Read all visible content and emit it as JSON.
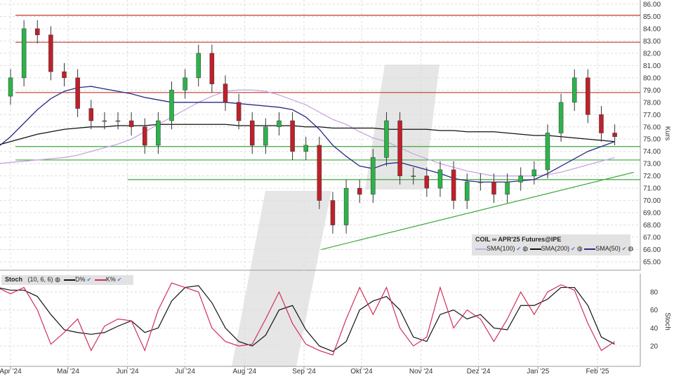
{
  "chart_data": {
    "type": "candlestick",
    "title": "COIL ∞ APR'25 Futures@IPE",
    "ylabel": "Kurs",
    "ylim": [
      64,
      86.5
    ],
    "yticks": [
      "65.00",
      "66.00",
      "67.00",
      "68.00",
      "69.00",
      "70.00",
      "71.00",
      "72.00",
      "73.00",
      "74.00",
      "75.00",
      "76.00",
      "77.00",
      "78.00",
      "79.00",
      "80.00",
      "81.00",
      "82.00",
      "83.00",
      "84.00",
      "85.00",
      "86.00"
    ],
    "xticks": [
      {
        "label": "Apr '24",
        "date": "2024-04-01"
      },
      {
        "label": "Mai '24",
        "date": "2024-05-01"
      },
      {
        "label": "Jun '24",
        "date": "2024-06-01"
      },
      {
        "label": "Jul '24",
        "date": "2024-07-01"
      },
      {
        "label": "Aug '24",
        "date": "2024-08-01"
      },
      {
        "label": "Sep '24",
        "date": "2024-09-01"
      },
      {
        "label": "Okt '24",
        "date": "2024-10-01"
      },
      {
        "label": "Nov '24",
        "date": "2024-11-01"
      },
      {
        "label": "Dez '24",
        "date": "2024-12-01"
      },
      {
        "label": "Jan '25",
        "date": "2025-01-01"
      },
      {
        "label": "Feb '25",
        "date": "2025-02-01"
      }
    ],
    "dates": [
      "2024-03-25",
      "2024-04-01",
      "2024-04-08",
      "2024-04-15",
      "2024-04-22",
      "2024-04-29",
      "2024-05-06",
      "2024-05-13",
      "2024-05-20",
      "2024-05-27",
      "2024-06-03",
      "2024-06-10",
      "2024-06-17",
      "2024-06-24",
      "2024-07-01",
      "2024-07-08",
      "2024-07-15",
      "2024-07-22",
      "2024-07-29",
      "2024-08-05",
      "2024-08-12",
      "2024-08-19",
      "2024-08-26",
      "2024-09-02",
      "2024-09-09",
      "2024-09-16",
      "2024-09-23",
      "2024-09-30",
      "2024-10-07",
      "2024-10-14",
      "2024-10-21",
      "2024-10-28",
      "2024-11-04",
      "2024-11-11",
      "2024-11-18",
      "2024-11-25",
      "2024-12-02",
      "2024-12-09",
      "2024-12-16",
      "2024-12-23",
      "2024-12-30",
      "2025-01-06",
      "2025-01-13",
      "2025-01-20",
      "2025-01-27",
      "2025-02-03",
      "2025-02-10"
    ],
    "close": [
      78.5,
      80,
      84,
      83.5,
      80.5,
      80,
      77.5,
      76.5,
      76.5,
      76.5,
      76,
      74.5,
      76.5,
      79,
      80,
      82,
      79.5,
      78,
      76.5,
      74.5,
      76,
      76.5,
      74,
      74.5,
      70,
      68,
      71,
      70.5,
      73.5,
      76.5,
      72,
      72,
      71,
      72.5,
      70,
      71.5,
      71.5,
      70.5,
      71.5,
      72,
      72.5,
      75.5,
      78,
      80,
      77,
      75.5,
      75.2
    ],
    "series": [
      {
        "name": "SMA(100)",
        "color": "#c9a6e0",
        "values": [
          73,
          73.1,
          73.2,
          73.3,
          73.4,
          73.5,
          73.7,
          74,
          74.3,
          74.6,
          75,
          75.6,
          76.2,
          76.8,
          77.4,
          78,
          78.5,
          78.9,
          79,
          79,
          78.9,
          78.6,
          78.2,
          77.8,
          77.2,
          76.6,
          76.2,
          75.6,
          75.1,
          74.8,
          74.3,
          73.8,
          73.4,
          73,
          72.7,
          72.4,
          72.2,
          72,
          72,
          72,
          72,
          72.1,
          72.3,
          72.6,
          72.9,
          73.2,
          73.5
        ]
      },
      {
        "name": "SMA(200)",
        "color": "#111111",
        "values": [
          74.5,
          74.8,
          75.1,
          75.4,
          75.6,
          75.8,
          75.9,
          76,
          76,
          76.1,
          76.1,
          76.1,
          76.2,
          76.2,
          76.2,
          76.2,
          76.2,
          76.2,
          76.1,
          76.1,
          76.1,
          76.1,
          76.1,
          76,
          76,
          75.9,
          75.9,
          75.9,
          75.9,
          75.8,
          75.8,
          75.8,
          75.8,
          75.7,
          75.7,
          75.6,
          75.6,
          75.6,
          75.5,
          75.4,
          75.3,
          75.3,
          75.2,
          75.1,
          75,
          74.9,
          74.8
        ]
      },
      {
        "name": "SMA(50)",
        "color": "#2a2a8a",
        "values": [
          74.3,
          75.2,
          76.3,
          77.4,
          78.3,
          78.9,
          79.2,
          79.3,
          79.1,
          78.9,
          78.7,
          78.4,
          78.2,
          78,
          78,
          78,
          78,
          78,
          77.9,
          77.8,
          77.7,
          77.6,
          77.4,
          76.8,
          75.8,
          74.5,
          73.6,
          72.8,
          72.6,
          73,
          73.1,
          72.8,
          72.5,
          72.2,
          71.8,
          71.6,
          71.5,
          71.5,
          71.5,
          71.6,
          71.7,
          72.2,
          72.8,
          73.4,
          74,
          74.4,
          74.8
        ]
      }
    ],
    "hlines": [
      {
        "value": 85.1,
        "color": "#c0392b"
      },
      {
        "value": 82.9,
        "color": "#c0392b"
      },
      {
        "value": 78.8,
        "color": "#c0392b"
      },
      {
        "value": 74.4,
        "color": "#3aa63a"
      },
      {
        "value": 73.3,
        "color": "#3aa63a"
      },
      {
        "value": 71.7,
        "color": "#3aa63a",
        "from": "2024-06-01"
      }
    ],
    "trendline": {
      "from": {
        "date": "2024-09-10",
        "value": 66.0
      },
      "to": {
        "date": "2025-02-20",
        "value": 72.3
      },
      "color": "#3aa63a"
    },
    "stoch": {
      "title": "Stoch",
      "params": "(10, 6, 6)",
      "ylabel": "Stoch",
      "yticks": [
        "20",
        "40",
        "60",
        "80"
      ],
      "ylim": [
        0,
        100
      ],
      "D": {
        "name": "D%",
        "color": "#111111",
        "values": [
          85,
          82,
          82,
          75,
          55,
          38,
          35,
          33,
          35,
          42,
          48,
          35,
          40,
          70,
          85,
          87,
          68,
          40,
          25,
          20,
          32,
          60,
          65,
          38,
          20,
          14,
          25,
          60,
          70,
          75,
          60,
          30,
          25,
          55,
          60,
          50,
          55,
          40,
          38,
          65,
          65,
          72,
          85,
          85,
          65,
          30,
          22
        ]
      },
      "K": {
        "name": "K%",
        "color": "#d0305a",
        "values": [
          85,
          78,
          85,
          60,
          22,
          35,
          50,
          15,
          42,
          50,
          48,
          15,
          60,
          90,
          85,
          80,
          40,
          25,
          20,
          22,
          50,
          80,
          45,
          22,
          15,
          10,
          50,
          85,
          55,
          85,
          40,
          20,
          30,
          85,
          40,
          60,
          50,
          25,
          50,
          80,
          55,
          80,
          88,
          82,
          45,
          15,
          25
        ]
      }
    }
  },
  "legend": {
    "title": "COIL ∞ APR'25 Futures@IPE",
    "items": [
      "SMA(100)",
      "SMA(200)",
      "SMA(50)"
    ]
  }
}
